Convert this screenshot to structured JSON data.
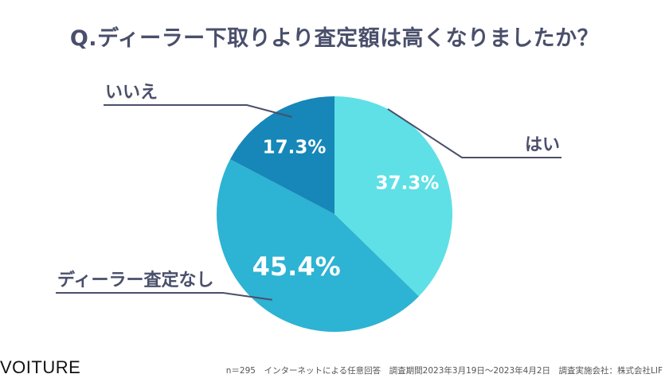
{
  "title": "Q.ディーラー下取りより査定額は高くなりましたか？",
  "brand": "VOITURE",
  "footnote": "n＝295　インターネットによる任意回答　調査期間2023年3月19日〜2023年4月2日　調査実施会社：株式会社LIF",
  "colors": {
    "title": "#4a4f6b",
    "label": "#4a4f6b",
    "slice_text": "#ffffff",
    "leader": "#4a4f6b"
  },
  "chart_data": {
    "type": "pie",
    "title": "Q.ディーラー下取りより査定額は高くなりましたか？",
    "slices": [
      {
        "name": "はい",
        "value": 37.3,
        "label": "37.3%",
        "color": "#5ee0e6"
      },
      {
        "name": "ディーラー査定なし",
        "value": 45.4,
        "label": "45.4%",
        "color": "#2db3d3"
      },
      {
        "name": "いいえ",
        "value": 17.3,
        "label": "17.3%",
        "color": "#1687b8"
      }
    ],
    "start": "12 o'clock",
    "direction": "clockwise",
    "legend": "callout labels"
  }
}
